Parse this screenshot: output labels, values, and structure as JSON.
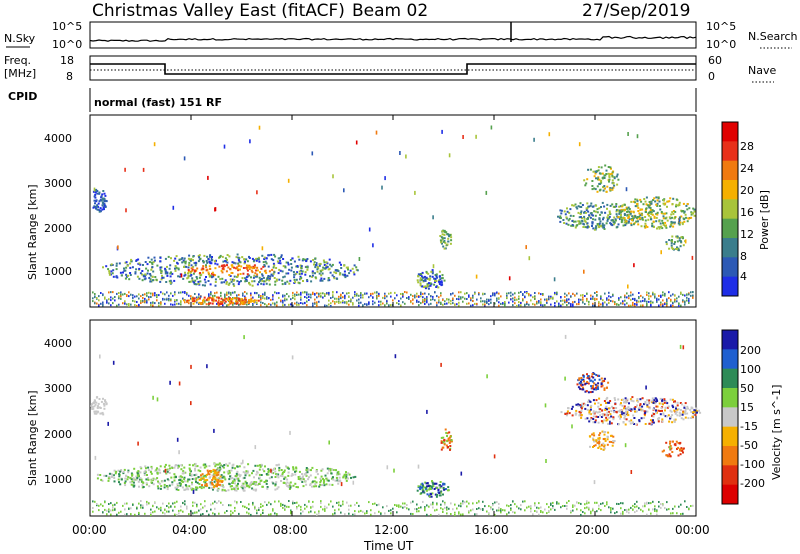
{
  "header": {
    "site_title": "Christmas Valley East (fitACF)",
    "beam": "Beam 02",
    "date": "27/Sep/2019"
  },
  "panel_labels": {
    "nsky": "N.Sky",
    "nsearch": "N.Search",
    "freq": "Freq.",
    "freq_unit": "[MHz]",
    "cpid": "CPID",
    "nave": "Nave",
    "cpid_value": "normal (fast) 151 RF",
    "nsky_tick_top": "10^5",
    "nsky_tick_bottom": "10^0",
    "nsearch_tick_top": "10^5",
    "nsearch_tick_bottom": "10^0",
    "freq_tick_top": "18",
    "freq_tick_bottom": "8",
    "nave_tick_top": "60",
    "nave_tick_bottom": "0"
  },
  "chart_data": [
    {
      "type": "heatmap",
      "title": "Power",
      "ylabel": "Slant Range [km]",
      "xlabel": "",
      "ylim": [
        200,
        4500
      ],
      "xlim": [
        "00:00",
        "00:00"
      ],
      "y_ticks": [
        "1000",
        "2000",
        "3000",
        "4000"
      ],
      "colorbar_label": "Power [dB]",
      "colorbar_ticks": [
        "4",
        "8",
        "12",
        "16",
        "20",
        "24",
        "28"
      ],
      "colorbar_colors": [
        "#1f2ee6",
        "#2c59b5",
        "#3a7d8c",
        "#55a14e",
        "#a8c43a",
        "#f5b000",
        "#f07a10",
        "#e8301a",
        "#e00000"
      ]
    },
    {
      "type": "heatmap",
      "title": "Velocity",
      "ylabel": "Slant Range [km]",
      "xlabel": "Time UT",
      "ylim": [
        200,
        4500
      ],
      "y_ticks": [
        "1000",
        "2000",
        "3000",
        "4000"
      ],
      "x_ticks": [
        "00:00",
        "04:00",
        "08:00",
        "12:00",
        "16:00",
        "20:00",
        "00:00"
      ],
      "colorbar_label": "Velocity [m s^-1]",
      "colorbar_ticks": [
        "200",
        "100",
        "50",
        "15",
        "-15",
        "-50",
        "-100",
        "-200"
      ],
      "colorbar_colors": [
        "#1a1aa8",
        "#1f5fcf",
        "#2e8b57",
        "#7ccf3c",
        "#c8c8c8",
        "#f5b000",
        "#f07a10",
        "#e03010",
        "#dc0000"
      ]
    }
  ]
}
